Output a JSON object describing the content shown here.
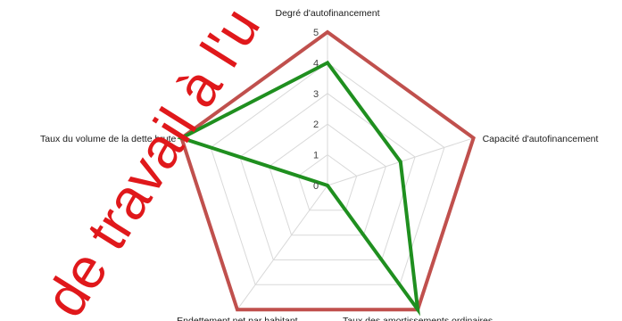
{
  "chart_data": {
    "type": "radar",
    "categories": [
      "Degré d'autofinancement",
      "Capacité d'autofinancement",
      "Taux des amortissements ordinaires",
      "Endettement net par habitant",
      "Taux du volume de la dette brute"
    ],
    "series": [
      {
        "values": [
          5,
          5,
          5,
          5,
          5
        ],
        "color": "#c0504d"
      },
      {
        "values": [
          4,
          2.5,
          5,
          0,
          5
        ],
        "color": "#1f8f1f"
      }
    ],
    "rlim": [
      0,
      5
    ],
    "ticks": [
      "0",
      "1",
      "2",
      "3",
      "4",
      "5"
    ],
    "grid": true,
    "legend": "none"
  },
  "watermark": {
    "text": "de travail à l'u",
    "color": "#e0181b"
  }
}
